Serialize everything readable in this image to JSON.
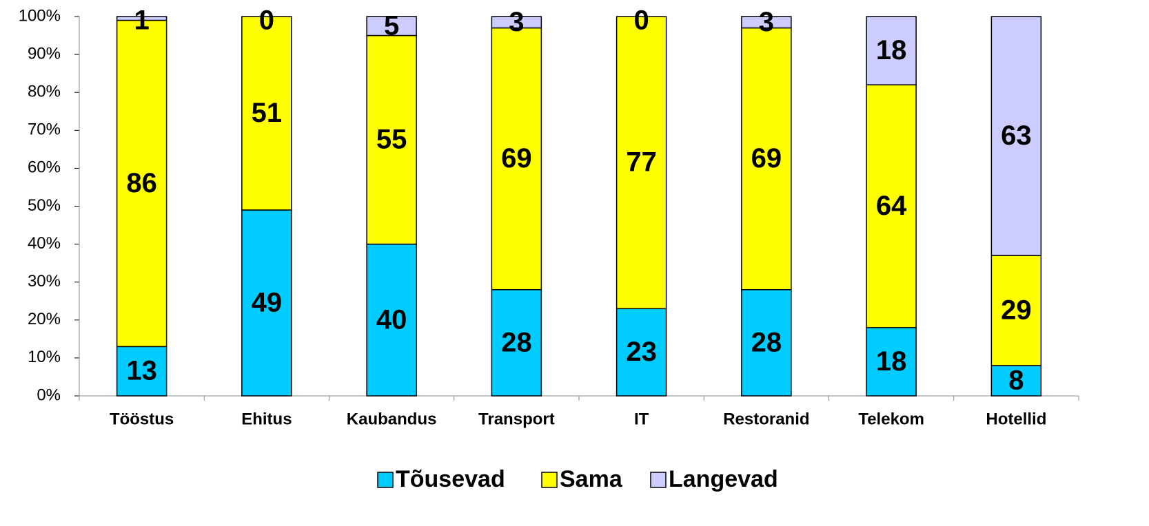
{
  "chart_data": {
    "type": "stacked_bar_100",
    "categories": [
      "Tööstus",
      "Ehitus",
      "Kaubandus",
      "Transport",
      "IT",
      "Restoranid",
      "Telekom",
      "Hotellid"
    ],
    "series": [
      {
        "name": "Tõusevad",
        "color": "#00ccff",
        "values": [
          13,
          49,
          40,
          28,
          23,
          28,
          18,
          8
        ]
      },
      {
        "name": "Sama",
        "color": "#ffff00",
        "values": [
          86,
          51,
          55,
          69,
          77,
          69,
          64,
          29
        ]
      },
      {
        "name": "Langevad",
        "color": "#ccccff",
        "values": [
          1,
          0,
          5,
          3,
          0,
          3,
          18,
          63
        ]
      }
    ],
    "ylim": [
      0,
      100
    ],
    "yticks": [
      {
        "value": 0,
        "label": "0%"
      },
      {
        "value": 10,
        "label": "10%"
      },
      {
        "value": 20,
        "label": "20%"
      },
      {
        "value": 30,
        "label": "30%"
      },
      {
        "value": 40,
        "label": "40%"
      },
      {
        "value": 50,
        "label": "50%"
      },
      {
        "value": 60,
        "label": "60%"
      },
      {
        "value": 70,
        "label": "70%"
      },
      {
        "value": 80,
        "label": "80%"
      },
      {
        "value": 90,
        "label": "90%"
      },
      {
        "value": 100,
        "label": "100%"
      }
    ],
    "grid": false,
    "legend": "bottom"
  }
}
